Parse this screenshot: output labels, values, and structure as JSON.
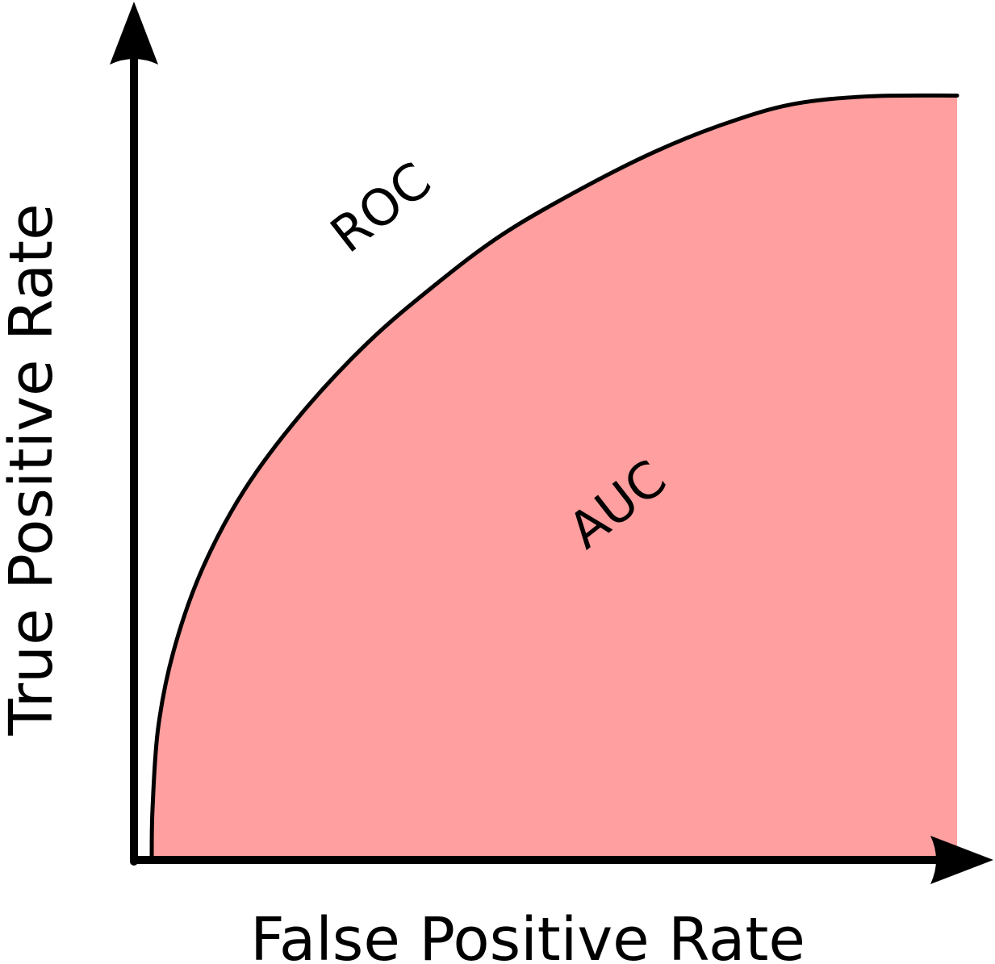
{
  "chart_data": {
    "type": "area",
    "title": "",
    "xlabel": "False Positive Rate",
    "ylabel": "True Positive Rate",
    "xlim": [
      0,
      1
    ],
    "ylim": [
      0,
      1
    ],
    "grid": false,
    "series": [
      {
        "name": "ROC",
        "x": [
          0,
          0.001,
          0.008,
          0.027,
          0.062,
          0.115,
          0.185,
          0.268,
          0.352,
          0.435,
          0.53,
          0.624,
          0.71,
          0.795,
          0.89,
          1.0
        ],
        "y": [
          0,
          0.064,
          0.166,
          0.262,
          0.364,
          0.465,
          0.56,
          0.65,
          0.723,
          0.786,
          0.842,
          0.89,
          0.925,
          0.95,
          0.96,
          0.961
        ]
      }
    ],
    "annotations": [
      {
        "label": "ROC"
      },
      {
        "label": "AUC"
      }
    ],
    "colors": {
      "fill": "#ff9f9f",
      "line": "#000000",
      "axis": "#000000"
    }
  }
}
